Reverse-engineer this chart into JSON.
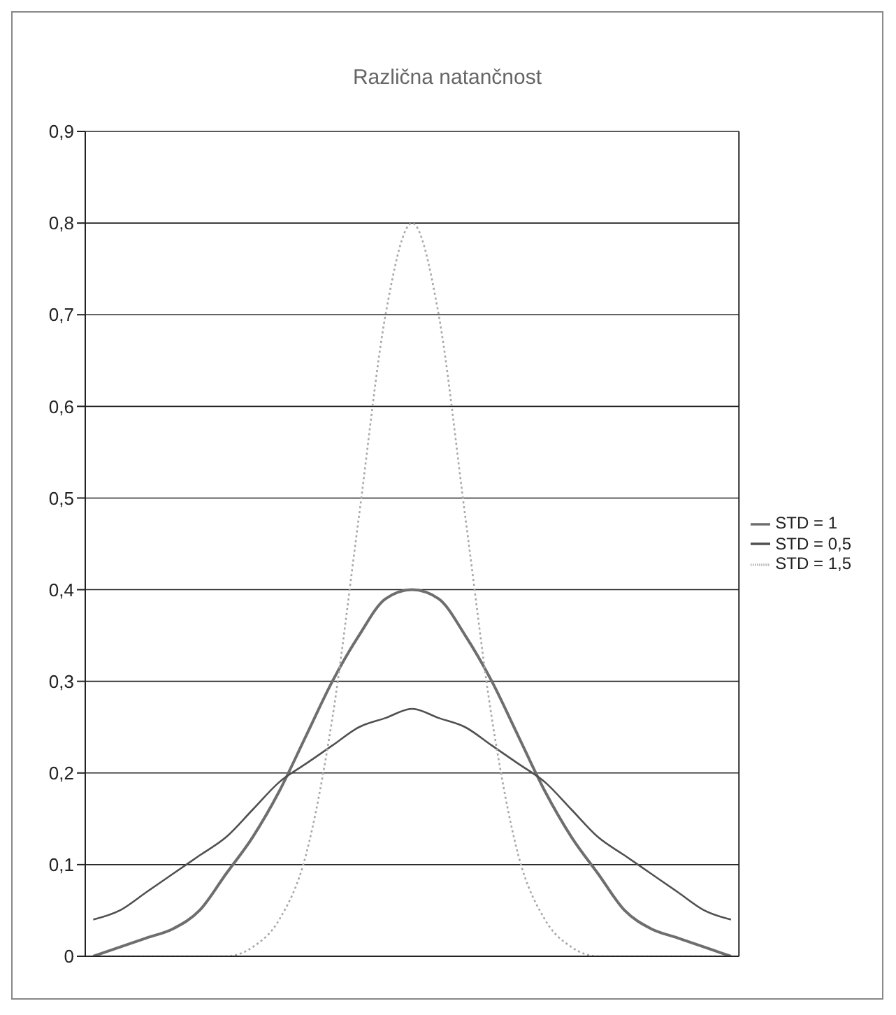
{
  "chart_data": {
    "type": "line",
    "title": "Različna natančnost",
    "categories": [
      null,
      null,
      null,
      null,
      null,
      null,
      null,
      null,
      null,
      null,
      null,
      null,
      null,
      null,
      null,
      null,
      null,
      null,
      null,
      null,
      null,
      null,
      null,
      null,
      null
    ],
    "series": [
      {
        "name": "STD = 1",
        "color": "#6e6e6e",
        "line_style": "solid",
        "values": [
          0.0,
          0.01,
          0.02,
          0.03,
          0.05,
          0.09,
          0.13,
          0.18,
          0.24,
          0.3,
          0.35,
          0.39,
          0.4,
          0.39,
          0.35,
          0.3,
          0.24,
          0.18,
          0.13,
          0.09,
          0.05,
          0.03,
          0.02,
          0.01,
          0.0
        ]
      },
      {
        "name": "STD = 0,5",
        "color": "#505050",
        "line_style": "solid",
        "values": [
          0.04,
          0.05,
          0.07,
          0.09,
          0.11,
          0.13,
          0.16,
          0.19,
          0.21,
          0.23,
          0.25,
          0.26,
          0.27,
          0.26,
          0.25,
          0.23,
          0.21,
          0.19,
          0.16,
          0.13,
          0.11,
          0.09,
          0.07,
          0.05,
          0.04
        ]
      },
      {
        "name": "STD = 1,5",
        "color": "#a8a8a8",
        "line_style": "dotted",
        "values": [
          0.0,
          0.0,
          0.0,
          0.0,
          0.0,
          0.0,
          0.01,
          0.04,
          0.11,
          0.26,
          0.48,
          0.7,
          0.8,
          0.7,
          0.48,
          0.26,
          0.11,
          0.04,
          0.01,
          0.0,
          0.0,
          0.0,
          0.0,
          0.0,
          0.0
        ]
      }
    ],
    "ylim": [
      0,
      0.9
    ],
    "yticks": [
      {
        "value": 0,
        "label": "0"
      },
      {
        "value": 0.1,
        "label": "0,1"
      },
      {
        "value": 0.2,
        "label": "0,2"
      },
      {
        "value": 0.3,
        "label": "0,3"
      },
      {
        "value": 0.4,
        "label": "0,4"
      },
      {
        "value": 0.5,
        "label": "0,5"
      },
      {
        "value": 0.6,
        "label": "0,6"
      },
      {
        "value": 0.7,
        "label": "0,7"
      },
      {
        "value": 0.8,
        "label": "0,8"
      },
      {
        "value": 0.9,
        "label": "0,9"
      }
    ],
    "grid": "y",
    "legend": "right",
    "marker": "none",
    "tick_labels": "y"
  }
}
